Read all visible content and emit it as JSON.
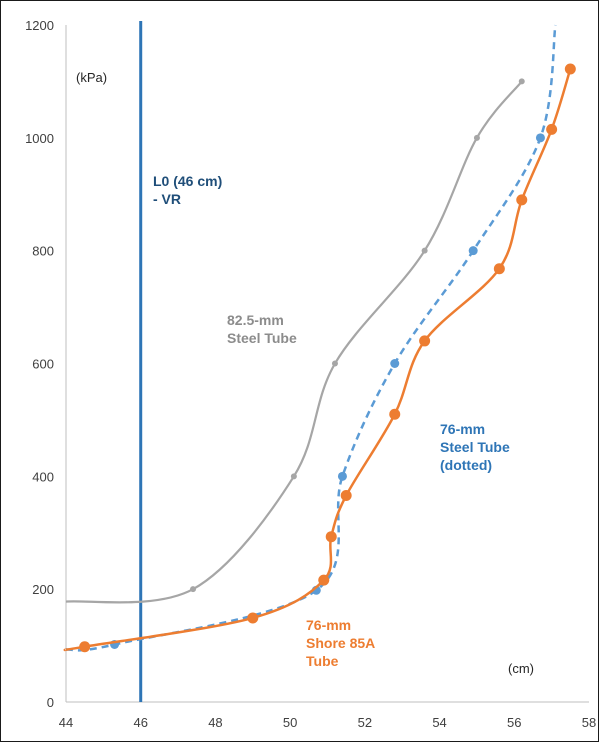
{
  "chart_data": {
    "type": "line",
    "x_unit_label": "(cm)",
    "y_unit_label": "(kPa)",
    "xlim": [
      44,
      58
    ],
    "ylim": [
      0,
      1200
    ],
    "x_ticks": [
      "44",
      "46",
      "48",
      "50",
      "52",
      "54",
      "56",
      "58"
    ],
    "y_ticks": [
      "0",
      "200",
      "400",
      "600",
      "800",
      "1000",
      "1200"
    ],
    "grid": false,
    "legend": "none",
    "reference_line": {
      "x": 46,
      "label_lines": [
        "L0 (46 cm)",
        "- VR"
      ],
      "color": "#2e75b6"
    },
    "series": [
      {
        "name": "82.5-mm Steel Tube",
        "label_lines": [
          "82.5-mm",
          "Steel Tube"
        ],
        "color": "#a6a6a6",
        "style": "solid",
        "points": [
          [
            44.0,
            178
          ],
          [
            47.4,
            200
          ],
          [
            50.1,
            400
          ],
          [
            51.2,
            600
          ],
          [
            53.6,
            800
          ],
          [
            55.0,
            1000
          ],
          [
            56.2,
            1100
          ]
        ]
      },
      {
        "name": "76-mm Steel Tube (dotted)",
        "label_lines": [
          "76-mm",
          "Steel Tube",
          "(dotted)"
        ],
        "color": "#5b9bd5",
        "style": "dashed",
        "points": [
          [
            44.0,
            93
          ],
          [
            45.3,
            102
          ],
          [
            50.7,
            198
          ],
          [
            51.4,
            400
          ],
          [
            52.8,
            600
          ],
          [
            54.9,
            800
          ],
          [
            56.7,
            1000
          ],
          [
            57.1,
            1200
          ]
        ]
      },
      {
        "name": "76-mm Shore 85A Tube",
        "label_lines": [
          "76-mm",
          "Shore 85A",
          "Tube"
        ],
        "color": "#ed7d31",
        "style": "solid",
        "points": [
          [
            44.0,
            93
          ],
          [
            44.5,
            98
          ],
          [
            49.0,
            149
          ],
          [
            50.9,
            216
          ],
          [
            51.1,
            293
          ],
          [
            51.5,
            366
          ],
          [
            52.8,
            510
          ],
          [
            53.6,
            640
          ],
          [
            55.6,
            768
          ],
          [
            56.2,
            890
          ],
          [
            57.0,
            1015
          ],
          [
            57.5,
            1122
          ]
        ]
      }
    ]
  }
}
